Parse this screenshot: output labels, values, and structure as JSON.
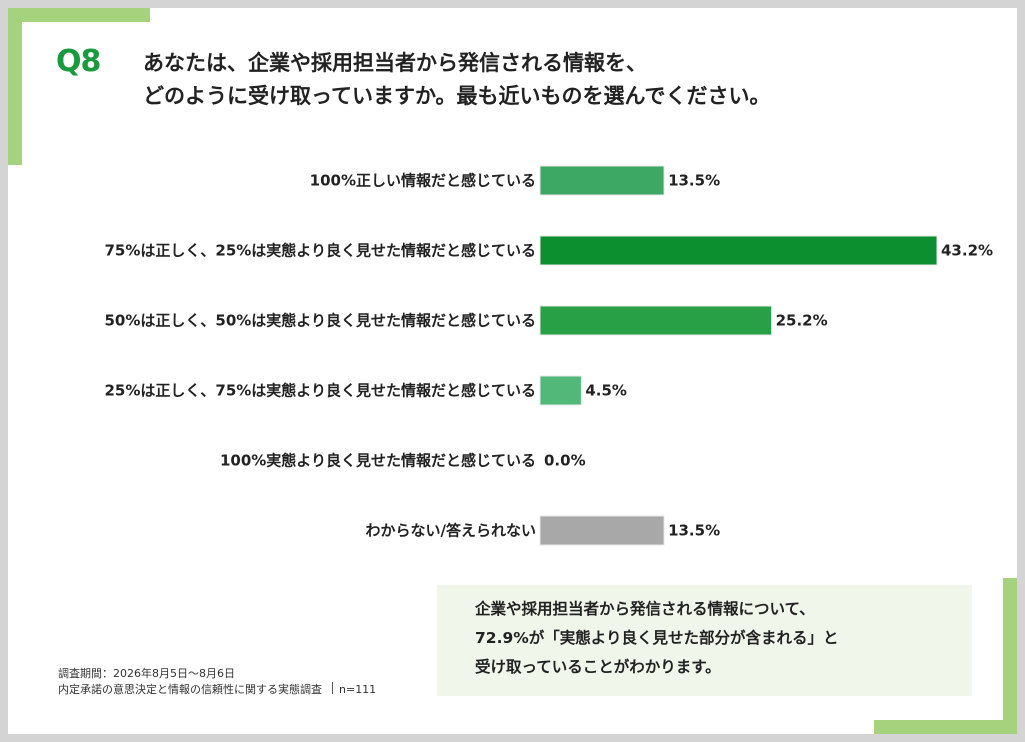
{
  "question": {
    "number": "Q8",
    "line1": "あなたは、企業や採用担当者から発信される情報を、",
    "line2": "どのように受け取っていますか。最も近いものを選んでください。"
  },
  "chart_data": {
    "type": "bar",
    "orientation": "horizontal",
    "categories": [
      "100%正しい情報だと感じている",
      "75%は正しく、25%は実態より良く見せた情報だと感じている",
      "50%は正しく、50%は実態より良く見せた情報だと感じている",
      "25%は正しく、75%は実態より良く見せた情報だと感じている",
      "100%実態より良く見せた情報だと感じている",
      "わからない/答えられない"
    ],
    "values": [
      13.5,
      43.2,
      25.2,
      4.5,
      0.0,
      13.5
    ],
    "value_labels": [
      "13.5%",
      "43.2%",
      "25.2%",
      "4.5%",
      "0.0%",
      "13.5%"
    ],
    "colors": [
      "#3ca864",
      "#0c8f2f",
      "#28a046",
      "#52b87a",
      "#52b87a",
      "#a8a8a8"
    ],
    "unit": "%",
    "xlim": [
      0,
      43.2
    ],
    "grid": false,
    "legend": "none"
  },
  "footnote": {
    "period": "調査期間：2026年8月5日～8月6日",
    "survey": "内定承諾の意思決定と情報の信頼性に関する実態調査",
    "n": "n=111"
  },
  "summary": {
    "line1": "企業や採用担当者から発信される情報について、",
    "line2": "72.9%が「実態より良く見せた部分が含まれる」と",
    "line3": "受け取っていることがわかります。"
  }
}
